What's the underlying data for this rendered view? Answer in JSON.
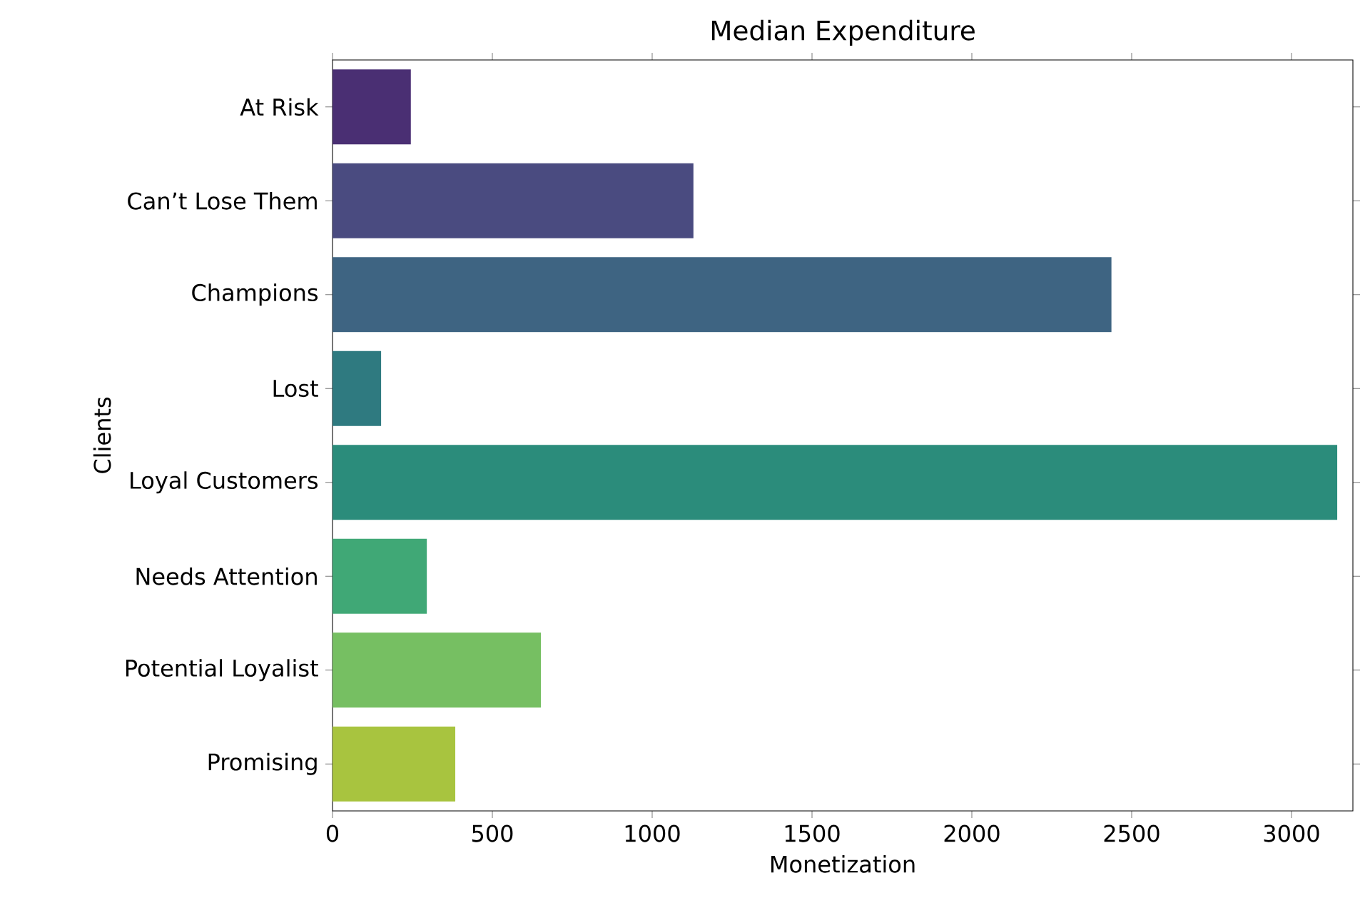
{
  "chart_data": {
    "type": "bar",
    "orientation": "horizontal",
    "title": "Median Expenditure",
    "xlabel": "Monetization",
    "ylabel": "Clients",
    "categories": [
      "At Risk",
      "Can’t Lose Them",
      "Champions",
      "Lost",
      "Loyal Customers",
      "Needs Attention",
      "Potential Loyalist",
      "Promising"
    ],
    "values": [
      245,
      1129,
      2437,
      152,
      3143,
      295,
      652,
      384
    ],
    "colors": [
      "#4a2f73",
      "#4a4b80",
      "#3e6482",
      "#2f7a80",
      "#2b8c7b",
      "#40a876",
      "#76bf62",
      "#a8c43f"
    ],
    "xlim": [
      0,
      3192
    ],
    "xticks": [
      0,
      500,
      1000,
      1500,
      2000,
      2500,
      3000
    ]
  }
}
